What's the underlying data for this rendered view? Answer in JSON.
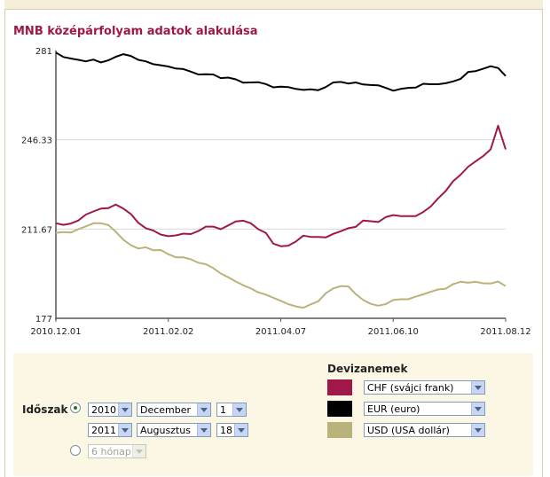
{
  "title": "MNB középárfolyam adatok alakulása",
  "chart_data": {
    "type": "line",
    "y_ticks": [
      "281",
      "246.33",
      "211.67",
      "177"
    ],
    "ylim": [
      177,
      281
    ],
    "x_ticks": [
      "2010.12.01",
      "2011.02.02",
      "2011.04.07",
      "2011.06.10",
      "2011.08.12"
    ],
    "grid": true,
    "series": [
      {
        "name": "EUR (euro)",
        "color": "#000000",
        "values": [
          280.2,
          278.5,
          277.9,
          277.4,
          276.8,
          277.5,
          276.4,
          277.2,
          278.6,
          279.6,
          278.9,
          277.4,
          276.8,
          275.7,
          275.3,
          274.8,
          274.0,
          273.8,
          272.8,
          271.7,
          271.8,
          271.7,
          270.3,
          270.5,
          269.8,
          268.5,
          268.6,
          268.7,
          268.0,
          266.7,
          267.0,
          266.8,
          266.1,
          265.7,
          265.9,
          265.6,
          266.8,
          268.6,
          268.8,
          268.2,
          268.6,
          267.8,
          267.6,
          267.5,
          266.5,
          265.4,
          266.1,
          266.5,
          266.6,
          268.1,
          267.9,
          267.9,
          268.3,
          269.0,
          270.0,
          272.7,
          273.0,
          273.9,
          274.9,
          274.2,
          271.1
        ]
      },
      {
        "name": "CHF (svájci frank)",
        "color": "#a0174a",
        "values": [
          213.9,
          213.3,
          213.8,
          215.0,
          217.3,
          218.5,
          219.6,
          219.8,
          221.2,
          219.6,
          217.5,
          214.1,
          212.0,
          211.1,
          209.5,
          208.9,
          209.2,
          209.9,
          209.7,
          210.9,
          212.6,
          212.6,
          211.6,
          213.1,
          214.6,
          214.9,
          213.9,
          211.6,
          210.2,
          206.0,
          205.0,
          205.2,
          206.8,
          209.1,
          208.6,
          208.6,
          208.4,
          209.8,
          210.8,
          212.0,
          212.5,
          215.0,
          214.7,
          214.4,
          216.3,
          217.1,
          216.7,
          216.7,
          216.7,
          218.3,
          220.4,
          223.6,
          226.4,
          230.3,
          232.8,
          235.9,
          238.0,
          240.0,
          242.6,
          251.8,
          242.6
        ]
      },
      {
        "name": "USD (USA dollár)",
        "color": "#b9b27a",
        "values": [
          210.2,
          210.5,
          210.3,
          211.6,
          212.7,
          213.9,
          213.9,
          213.2,
          210.6,
          207.5,
          205.4,
          204.1,
          204.6,
          203.4,
          203.5,
          201.9,
          200.7,
          200.7,
          199.9,
          198.6,
          198.0,
          196.5,
          194.4,
          192.9,
          191.3,
          189.8,
          188.6,
          187.1,
          186.2,
          185.0,
          183.8,
          182.5,
          181.6,
          181.1,
          182.4,
          183.6,
          186.7,
          188.6,
          189.5,
          189.4,
          186.4,
          184.1,
          182.6,
          181.9,
          182.5,
          184.1,
          184.4,
          184.4,
          185.4,
          186.3,
          187.3,
          188.2,
          188.5,
          190.3,
          191.2,
          190.8,
          191.2,
          190.6,
          190.5,
          191.3,
          189.5
        ]
      }
    ]
  },
  "form": {
    "period_label": "Időszak",
    "from": {
      "year": "2010",
      "month": "December",
      "day": "1"
    },
    "to": {
      "year": "2011",
      "month": "Augusztus",
      "day": "18"
    },
    "preset": "6 hónap",
    "currencies_label": "Devizanemek",
    "currencies": [
      {
        "label": "CHF (svájci frank)",
        "color": "#a0174a"
      },
      {
        "label": "EUR (euro)",
        "color": "#000000"
      },
      {
        "label": "USD (USA dollár)",
        "color": "#b9b27a"
      }
    ]
  }
}
